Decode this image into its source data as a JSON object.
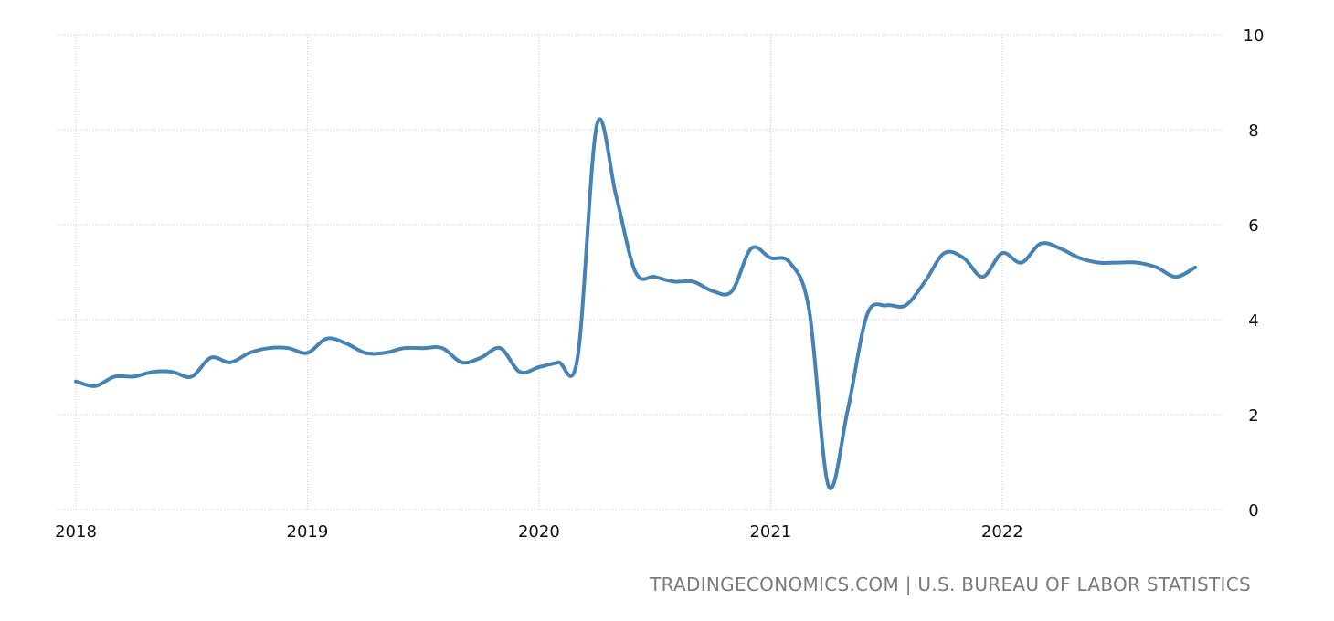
{
  "source_label": "TRADINGECONOMICS.COM | U.S. BUREAU OF LABOR STATISTICS",
  "colors": {
    "line": "#4682b4",
    "grid": "#c8c8c8",
    "text": "#111111",
    "source": "#7a7a7a"
  },
  "chart_data": {
    "type": "line",
    "title": "",
    "xlabel": "",
    "ylabel": "",
    "x_tick_labels": [
      "2018",
      "2019",
      "2020",
      "2021",
      "2022"
    ],
    "y_tick_labels": [
      "0",
      "2",
      "4",
      "6",
      "8",
      "10"
    ],
    "ylim": [
      0,
      10
    ],
    "xlim": [
      "2018-01",
      "2022-11"
    ],
    "grid": true,
    "y_axis_side": "right",
    "series": [
      {
        "x": [
          "2018-01",
          "2018-02",
          "2018-03",
          "2018-04",
          "2018-05",
          "2018-06",
          "2018-07",
          "2018-08",
          "2018-09",
          "2018-10",
          "2018-11",
          "2018-12",
          "2019-01",
          "2019-02",
          "2019-03",
          "2019-04",
          "2019-05",
          "2019-06",
          "2019-07",
          "2019-08",
          "2019-09",
          "2019-10",
          "2019-11",
          "2019-12",
          "2020-01",
          "2020-02",
          "2020-03",
          "2020-04",
          "2020-05",
          "2020-06",
          "2020-07",
          "2020-08",
          "2020-09",
          "2020-10",
          "2020-11",
          "2020-12",
          "2021-01",
          "2021-02",
          "2021-03",
          "2021-04",
          "2021-05",
          "2021-06",
          "2021-07",
          "2021-08",
          "2021-09",
          "2021-10",
          "2021-11",
          "2021-12",
          "2022-01",
          "2022-02",
          "2022-03",
          "2022-04",
          "2022-05",
          "2022-06",
          "2022-07",
          "2022-08",
          "2022-09",
          "2022-10",
          "2022-11"
        ],
        "values": [
          2.7,
          2.6,
          2.8,
          2.8,
          2.9,
          2.9,
          2.8,
          3.2,
          3.1,
          3.3,
          3.4,
          3.4,
          3.3,
          3.6,
          3.5,
          3.3,
          3.3,
          3.4,
          3.4,
          3.4,
          3.1,
          3.2,
          3.4,
          2.9,
          3.0,
          3.1,
          3.2,
          8.1,
          6.6,
          5.0,
          4.9,
          4.8,
          4.8,
          4.6,
          4.6,
          5.5,
          5.3,
          5.2,
          4.2,
          0.5,
          2.1,
          4.1,
          4.3,
          4.3,
          4.8,
          5.4,
          5.3,
          4.9,
          5.4,
          5.2,
          5.6,
          5.5,
          5.3,
          5.2,
          5.2,
          5.2,
          5.1,
          4.9,
          5.1
        ]
      }
    ]
  }
}
